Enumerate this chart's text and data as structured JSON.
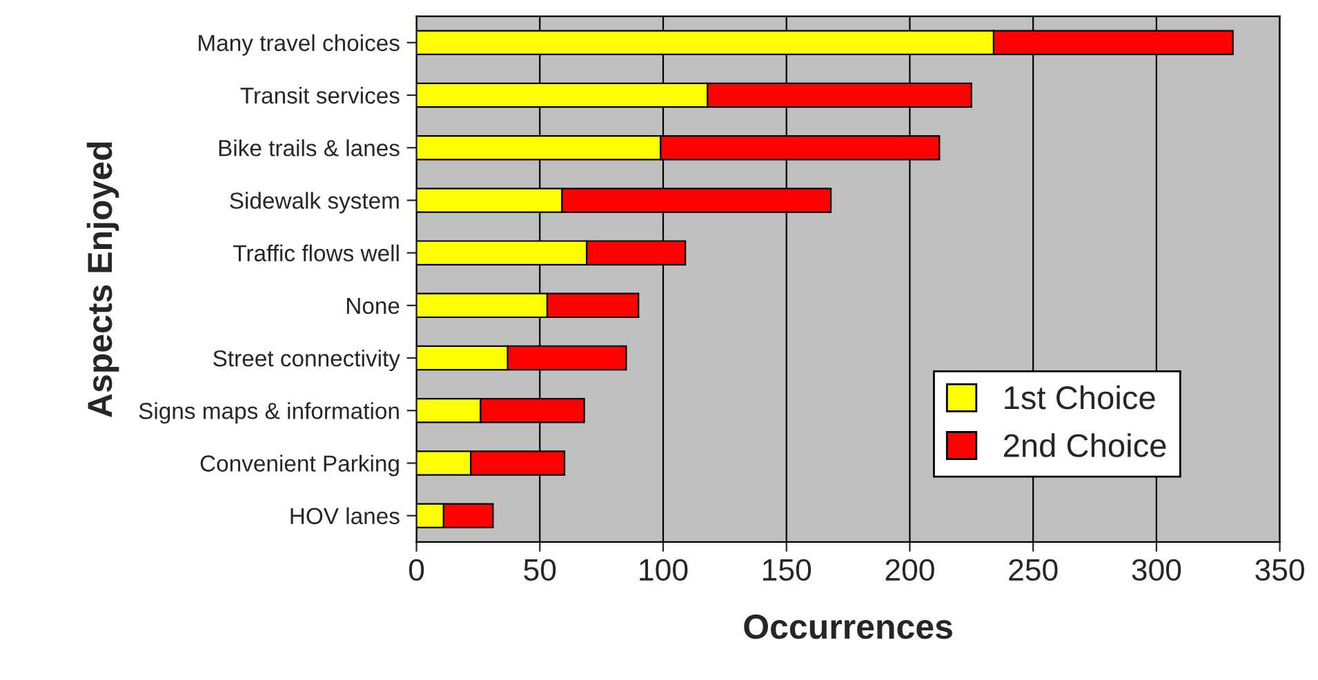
{
  "chart_data": {
    "type": "bar",
    "orientation": "horizontal",
    "stacked": true,
    "xlabel": "Occurrences",
    "ylabel": "Aspects Enjoyed",
    "categories": [
      "Many travel choices",
      "Transit services",
      "Bike trails & lanes",
      "Sidewalk system",
      "Traffic flows well",
      "None",
      "Street connectivity",
      "Signs maps & information",
      "Convenient Parking",
      "HOV lanes"
    ],
    "series": [
      {
        "name": "1st Choice",
        "color": "#ffff00",
        "values": [
          234,
          118,
          99,
          59,
          69,
          53,
          37,
          26,
          22,
          11
        ]
      },
      {
        "name": "2nd Choice",
        "color": "#ff0000",
        "values": [
          97,
          107,
          113,
          109,
          40,
          37,
          48,
          42,
          38,
          20
        ]
      }
    ],
    "xlim": [
      0,
      350
    ],
    "xticks": [
      0,
      50,
      100,
      150,
      200,
      250,
      300,
      350
    ],
    "grid": "x",
    "legend": "bottom right"
  }
}
